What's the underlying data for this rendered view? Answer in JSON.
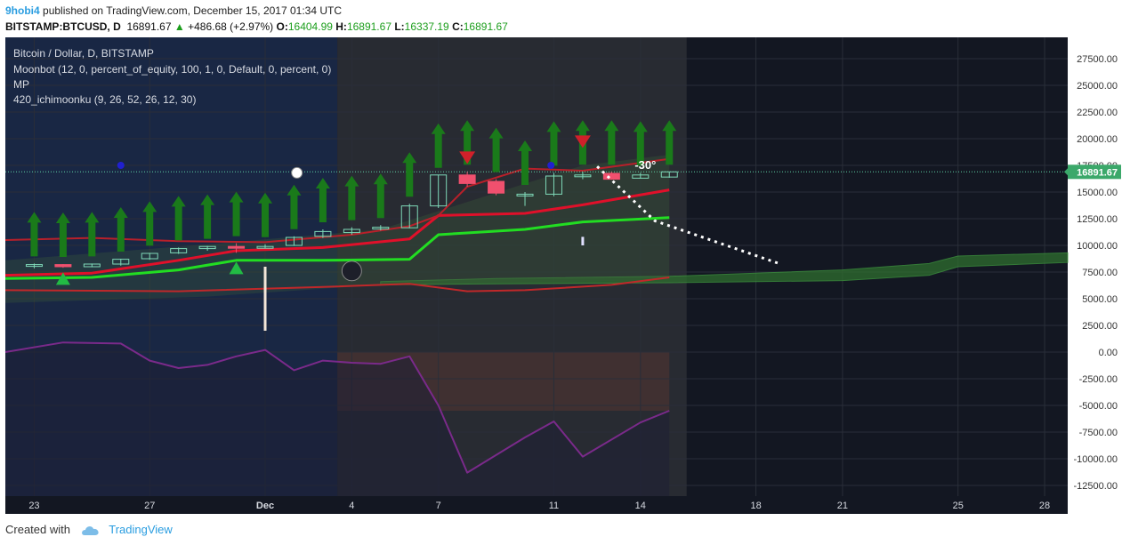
{
  "header": {
    "author": "9hobi4",
    "published_text": "published on TradingView.com, December 15, 2017 01:34 UTC",
    "symbol": "BITSTAMP:BTCUSD, D",
    "price": "16891.67",
    "change": "+486.68 (+2.97%)",
    "o_label": "O:",
    "o_value": "16404.99",
    "h_label": "H:",
    "h_value": "16891.67",
    "l_label": "L:",
    "l_value": "16337.19",
    "c_label": "C:",
    "c_value": "16891.67"
  },
  "legend": {
    "title": "Bitcoin / Dollar, D, BITSTAMP",
    "moonbot": "Moonbot (12, 0, percent_of_equity, 100, 1, 0, Default, 0, percent, 0)",
    "mp": "MP",
    "ichimoku": "420_ichimoonku (9, 26, 52, 26, 12, 30)"
  },
  "annotation": "-30°",
  "last_price_tag": "16891.67",
  "footer": {
    "created_with": "Created with",
    "brand": "TradingView"
  },
  "colors": {
    "bg_dark": "#131722",
    "bg_blue": "#1b2a4a",
    "bg_grey": "#2b2d34",
    "green_line": "#22dd22",
    "red_line": "#e0102a",
    "cloud": "#2e6e2e",
    "purple": "#7a2a8a",
    "arrow": "#1a7a1a",
    "tag_bg": "#3ba86a"
  },
  "chart_data": {
    "type": "candlestick",
    "title": "Bitcoin / Dollar, D, BITSTAMP",
    "y_ticks": [
      27500,
      25000,
      22500,
      20000,
      17500,
      15000,
      12500,
      10000,
      7500,
      5000,
      2500,
      0,
      -2500,
      -5000,
      -7500,
      -10000,
      -12500
    ],
    "y_tick_labels": [
      "27500.00",
      "25000.00",
      "22500.00",
      "20000.00",
      "17500.00",
      "15000.00",
      "12500.00",
      "10000.00",
      "7500.00",
      "5000.00",
      "2500.00",
      "0.00",
      "-2500.00",
      "-5000.00",
      "-7500.00",
      "-10000.00",
      "-12500.00"
    ],
    "ylim": [
      -13500,
      29500
    ],
    "x_ticks": [
      {
        "label": "23",
        "day": 0
      },
      {
        "label": "27",
        "day": 4
      },
      {
        "label": "Dec",
        "day": 8
      },
      {
        "label": "4",
        "day": 11
      },
      {
        "label": "7",
        "day": 14
      },
      {
        "label": "11",
        "day": 18
      },
      {
        "label": "14",
        "day": 21
      },
      {
        "label": "18",
        "day": 25
      },
      {
        "label": "21",
        "day": 28
      },
      {
        "label": "25",
        "day": 32
      },
      {
        "label": "28",
        "day": 35
      }
    ],
    "xlim": [
      -1,
      35.8
    ],
    "candles": [
      {
        "day": 0,
        "o": 8050,
        "h": 8300,
        "l": 7850,
        "c": 8200
      },
      {
        "day": 1,
        "o": 8200,
        "h": 8250,
        "l": 7900,
        "c": 8000
      },
      {
        "day": 2,
        "o": 8000,
        "h": 8300,
        "l": 7950,
        "c": 8250
      },
      {
        "day": 3,
        "o": 8250,
        "h": 8750,
        "l": 8100,
        "c": 8700
      },
      {
        "day": 4,
        "o": 8750,
        "h": 9300,
        "l": 8650,
        "c": 9250
      },
      {
        "day": 5,
        "o": 9300,
        "h": 9800,
        "l": 9200,
        "c": 9700
      },
      {
        "day": 6,
        "o": 9700,
        "h": 9950,
        "l": 9500,
        "c": 9900
      },
      {
        "day": 7,
        "o": 9900,
        "h": 10200,
        "l": 9300,
        "c": 9800
      },
      {
        "day": 8,
        "o": 9850,
        "h": 10100,
        "l": 9700,
        "c": 9900
      },
      {
        "day": 9,
        "o": 10000,
        "h": 10850,
        "l": 9950,
        "c": 10750
      },
      {
        "day": 10,
        "o": 10850,
        "h": 11500,
        "l": 10700,
        "c": 11300
      },
      {
        "day": 11,
        "o": 11200,
        "h": 11700,
        "l": 11000,
        "c": 11500
      },
      {
        "day": 12,
        "o": 11600,
        "h": 11900,
        "l": 11400,
        "c": 11700
      },
      {
        "day": 13,
        "o": 11650,
        "h": 13900,
        "l": 11600,
        "c": 13700
      },
      {
        "day": 14,
        "o": 13700,
        "h": 16600,
        "l": 13500,
        "c": 16600
      },
      {
        "day": 15,
        "o": 16600,
        "h": 16900,
        "l": 15500,
        "c": 15800
      },
      {
        "day": 16,
        "o": 16000,
        "h": 16200,
        "l": 14700,
        "c": 14900
      },
      {
        "day": 17,
        "o": 14700,
        "h": 15000,
        "l": 13700,
        "c": 14800
      },
      {
        "day": 18,
        "o": 14800,
        "h": 16800,
        "l": 14600,
        "c": 16500
      },
      {
        "day": 19,
        "o": 16500,
        "h": 16900,
        "l": 16200,
        "c": 16600
      },
      {
        "day": 20,
        "o": 16750,
        "h": 16900,
        "l": 16150,
        "c": 16200
      },
      {
        "day": 21,
        "o": 16300,
        "h": 16800,
        "l": 16250,
        "c": 16600
      },
      {
        "day": 22,
        "o": 16405,
        "h": 16892,
        "l": 16337,
        "c": 16892
      }
    ],
    "series": [
      {
        "name": "red_line",
        "values": [
          [
            -1,
            7200
          ],
          [
            2,
            7400
          ],
          [
            5,
            8600
          ],
          [
            7,
            9500
          ],
          [
            10,
            9800
          ],
          [
            13,
            10600
          ],
          [
            14,
            12800
          ],
          [
            17,
            13000
          ],
          [
            19,
            13800
          ],
          [
            22,
            15200
          ]
        ]
      },
      {
        "name": "green_line",
        "values": [
          [
            -1,
            6900
          ],
          [
            2,
            7000
          ],
          [
            5,
            7700
          ],
          [
            7,
            8600
          ],
          [
            10,
            8600
          ],
          [
            13,
            8700
          ],
          [
            14,
            11000
          ],
          [
            17,
            11500
          ],
          [
            19,
            12200
          ],
          [
            22,
            12600
          ]
        ]
      },
      {
        "name": "dark_red_line",
        "values": [
          [
            -1,
            5800
          ],
          [
            5,
            5700
          ],
          [
            10,
            6100
          ],
          [
            13,
            6400
          ],
          [
            15,
            5700
          ],
          [
            17,
            5800
          ],
          [
            20,
            6300
          ],
          [
            22,
            7000
          ]
        ]
      },
      {
        "name": "upper_red",
        "values": [
          [
            -1,
            10500
          ],
          [
            2,
            10700
          ],
          [
            5,
            10400
          ],
          [
            8,
            10300
          ],
          [
            11,
            11000
          ],
          [
            13,
            11800
          ],
          [
            14,
            12800
          ],
          [
            15,
            15500
          ],
          [
            17,
            17200
          ],
          [
            19,
            17000
          ],
          [
            22,
            18100
          ]
        ]
      },
      {
        "name": "purple_line",
        "values": [
          [
            -1,
            0
          ],
          [
            1,
            900
          ],
          [
            3,
            800
          ],
          [
            4,
            -800
          ],
          [
            5,
            -1500
          ],
          [
            6,
            -1200
          ],
          [
            7,
            -400
          ],
          [
            8,
            200
          ],
          [
            9,
            -1700
          ],
          [
            10,
            -800
          ],
          [
            11,
            -1000
          ],
          [
            12,
            -1100
          ],
          [
            13,
            -400
          ],
          [
            14,
            -5000
          ],
          [
            15,
            -11300
          ],
          [
            17,
            -8000
          ],
          [
            18,
            -6500
          ],
          [
            19,
            -9800
          ],
          [
            21,
            -6600
          ],
          [
            22,
            -5500
          ]
        ]
      }
    ],
    "cloud_future": [
      {
        "day": 12,
        "top": 6600,
        "bottom": 6300
      },
      {
        "day": 16,
        "top": 6900,
        "bottom": 6400
      },
      {
        "day": 22,
        "top": 7100,
        "bottom": 6500
      },
      {
        "day": 28,
        "top": 7700,
        "bottom": 6700
      },
      {
        "day": 31,
        "top": 8300,
        "bottom": 7200
      },
      {
        "day": 32,
        "top": 9000,
        "bottom": 8000
      },
      {
        "day": 35.8,
        "top": 9300,
        "bottom": 8400
      }
    ],
    "green_arrows": [
      0,
      1,
      2,
      3,
      4,
      5,
      6,
      7,
      8,
      9,
      10,
      11,
      12,
      13,
      14,
      15,
      16,
      17,
      18,
      19,
      20,
      21,
      22
    ],
    "red_arrows": [
      {
        "day": 15,
        "y": 18800
      },
      {
        "day": 19,
        "y": 20300
      }
    ],
    "projection": [
      [
        19.5,
        17400
      ],
      [
        21.5,
        12300
      ],
      [
        25.8,
        8300
      ]
    ],
    "current_price": 16891.67
  }
}
